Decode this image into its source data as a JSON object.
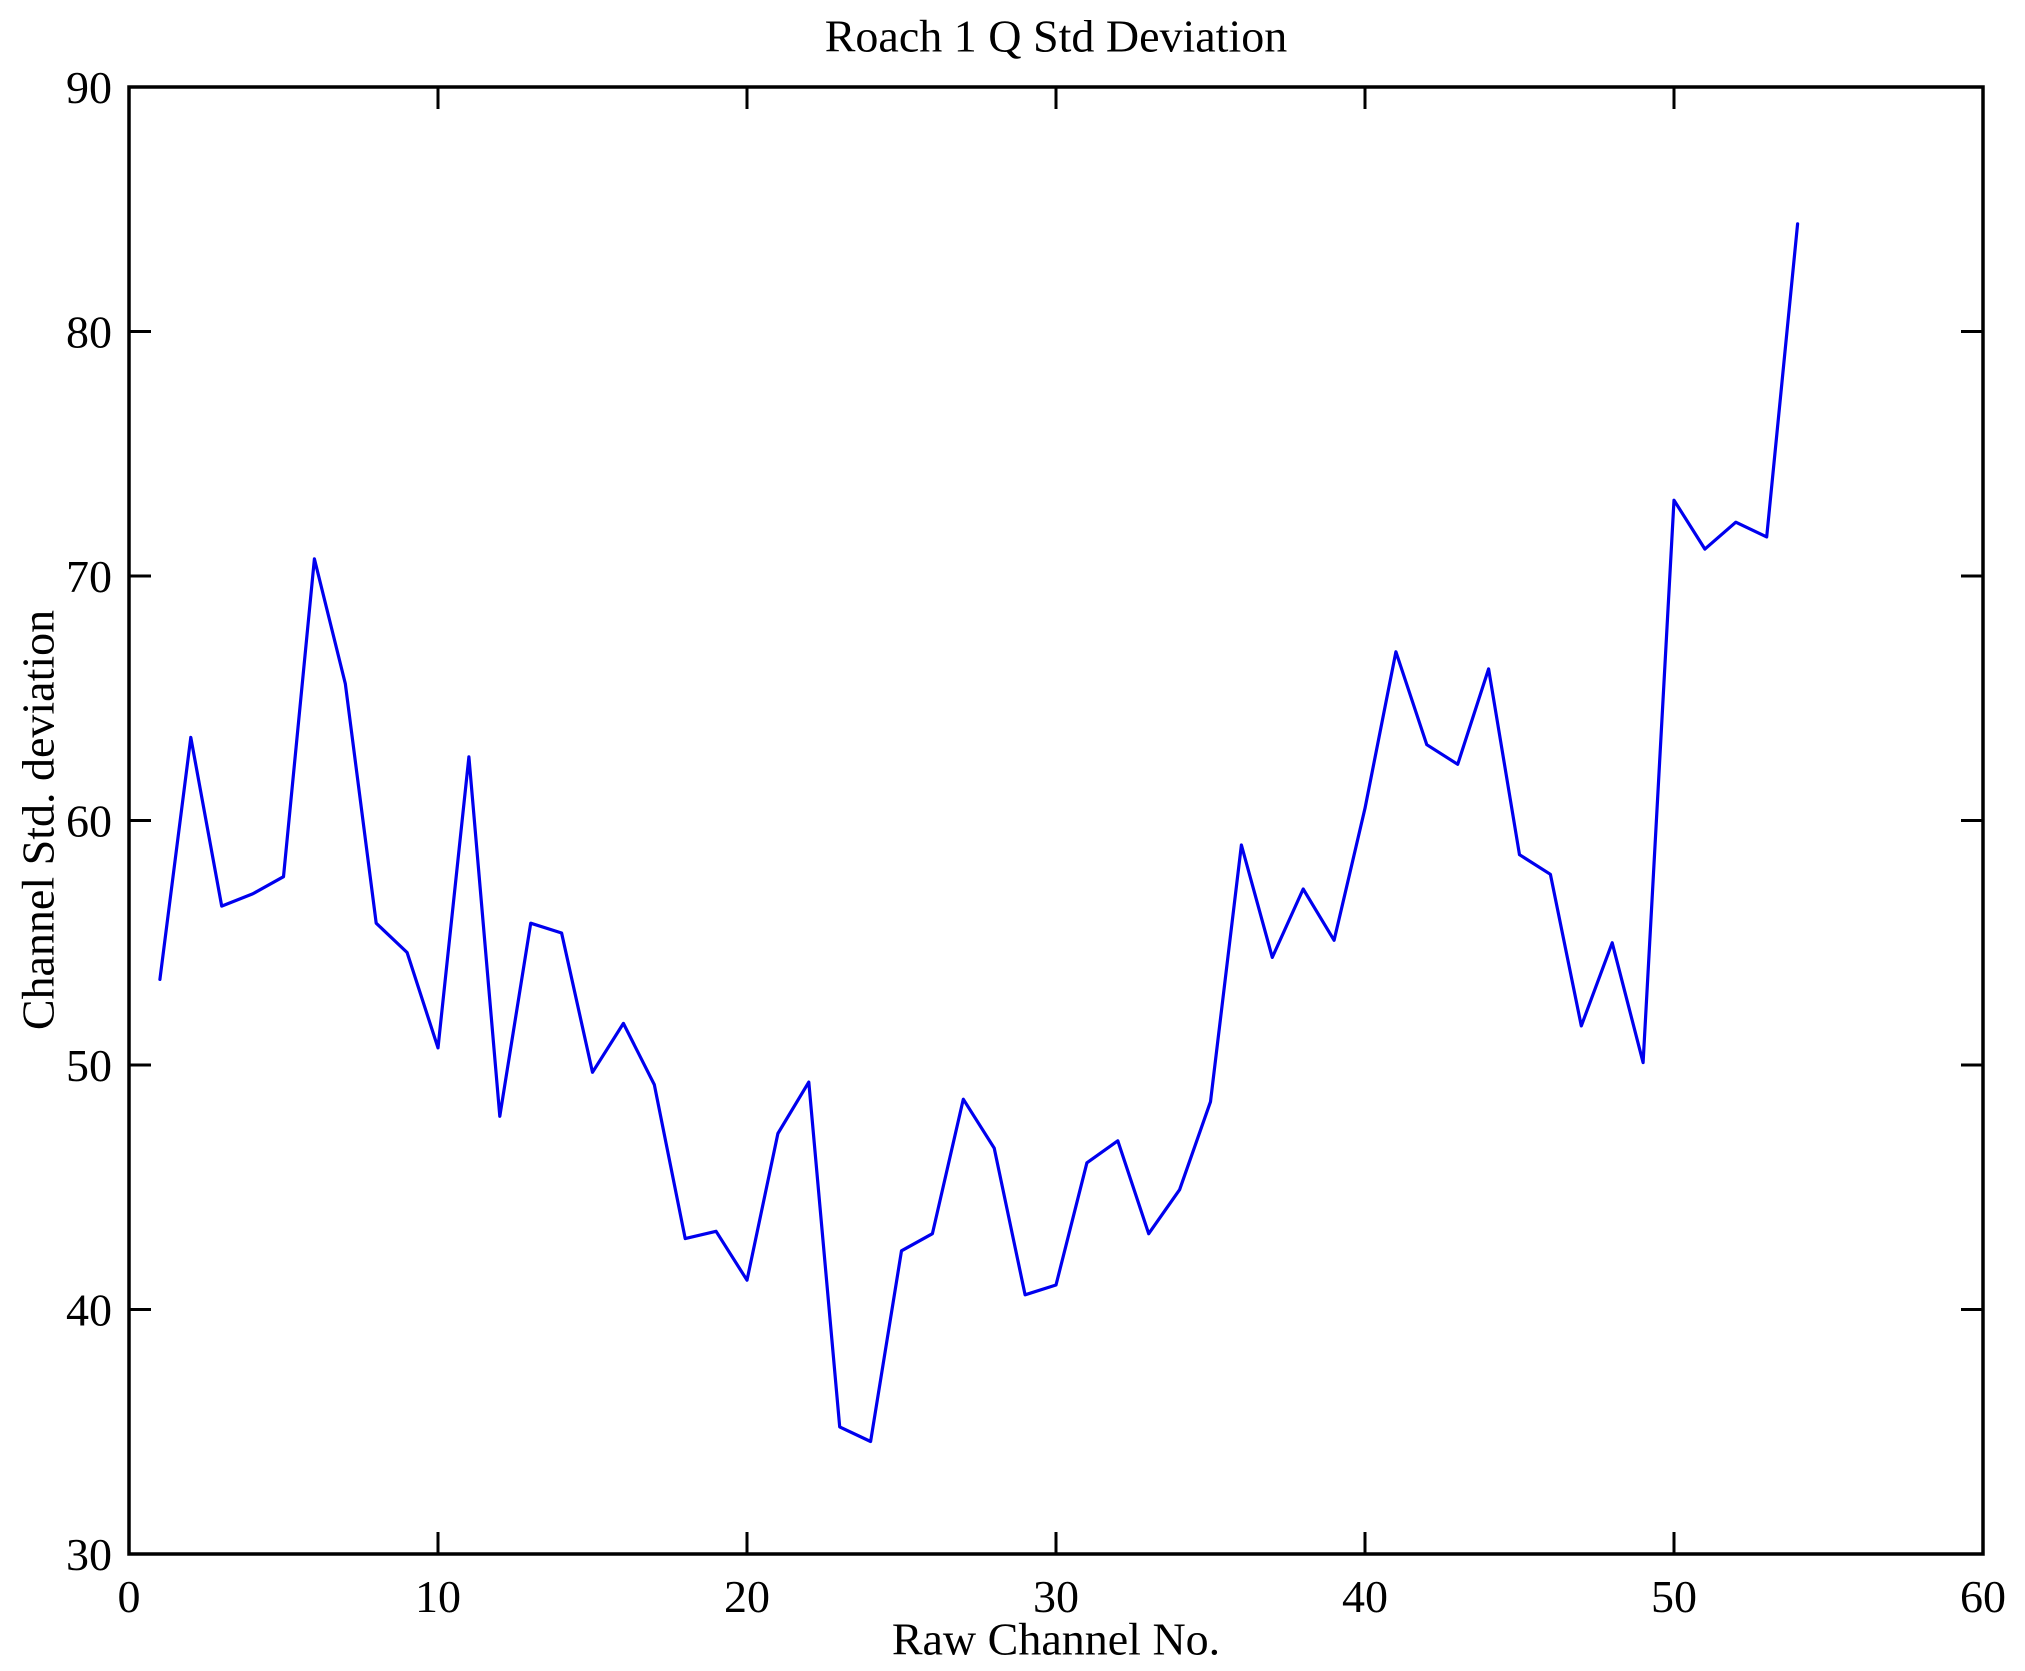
{
  "figure": {
    "title": "Roach 1 Q Std Deviation",
    "xlabel": "Raw Channel No.",
    "ylabel": "Channel Std. deviation"
  },
  "chart_data": {
    "type": "line",
    "title": "Roach 1 Q Std Deviation",
    "xlabel": "Raw Channel No.",
    "ylabel": "Channel Std. deviation",
    "xlim": [
      0,
      60
    ],
    "ylim": [
      30,
      90
    ],
    "xticks": [
      0,
      10,
      20,
      30,
      40,
      50,
      60
    ],
    "yticks": [
      30,
      40,
      50,
      60,
      70,
      80,
      90
    ],
    "grid": false,
    "legend": null,
    "line_color": "#0000ee",
    "axis_color": "#000000",
    "series_name": "Channel Std. deviation",
    "x": [
      1,
      2,
      3,
      4,
      5,
      6,
      7,
      8,
      9,
      10,
      11,
      12,
      13,
      14,
      15,
      16,
      17,
      18,
      19,
      20,
      21,
      22,
      23,
      24,
      25,
      26,
      27,
      28,
      29,
      30,
      31,
      32,
      33,
      34,
      35,
      36,
      37,
      38,
      39,
      40,
      41,
      42,
      43,
      44,
      45,
      46,
      47,
      48,
      49,
      50,
      51,
      52,
      53,
      54
    ],
    "values": [
      53.5,
      63.4,
      56.5,
      57.0,
      57.7,
      70.7,
      65.6,
      55.8,
      54.6,
      50.7,
      62.6,
      47.9,
      55.8,
      55.4,
      49.7,
      51.7,
      49.2,
      42.9,
      43.2,
      41.2,
      47.2,
      49.3,
      35.2,
      34.6,
      42.4,
      43.1,
      48.6,
      46.6,
      40.6,
      41.0,
      46.0,
      46.9,
      43.1,
      44.9,
      48.5,
      59.0,
      54.4,
      57.2,
      55.1,
      60.5,
      66.9,
      63.1,
      62.3,
      66.2,
      58.6,
      57.8,
      51.6,
      55.0,
      50.1,
      73.1,
      71.1,
      72.2,
      71.6,
      84.4
    ]
  }
}
